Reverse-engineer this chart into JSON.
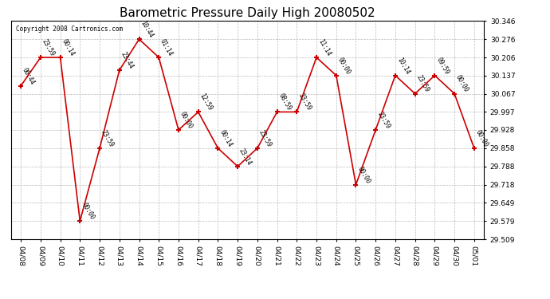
{
  "title": "Barometric Pressure Daily High 20080502",
  "copyright": "Copyright 2008 Cartronics.com",
  "x_labels": [
    "04/08",
    "04/09",
    "04/10",
    "04/11",
    "04/12",
    "04/13",
    "04/14",
    "04/15",
    "04/16",
    "04/17",
    "04/18",
    "04/19",
    "04/20",
    "04/21",
    "04/22",
    "04/23",
    "04/24",
    "04/25",
    "04/26",
    "04/27",
    "04/28",
    "04/29",
    "04/30",
    "05/01"
  ],
  "y_values": [
    30.097,
    30.206,
    30.206,
    29.579,
    29.858,
    30.157,
    30.276,
    30.206,
    29.928,
    29.997,
    29.858,
    29.788,
    29.858,
    29.997,
    29.997,
    30.206,
    30.137,
    29.718,
    29.928,
    30.137,
    30.067,
    30.137,
    30.067,
    29.858
  ],
  "point_labels": [
    "06:44",
    "23:59",
    "00:14",
    "00:00",
    "23:59",
    "23:44",
    "10:44",
    "01:14",
    "00:00",
    "12:59",
    "00:14",
    "23:14",
    "23:59",
    "08:59",
    "23:59",
    "11:14",
    "00:00",
    "00:00",
    "23:59",
    "10:14",
    "23:59",
    "09:59",
    "00:00",
    "00:00"
  ],
  "ylim_min": 29.509,
  "ylim_max": 30.346,
  "yticks": [
    29.509,
    29.579,
    29.649,
    29.718,
    29.788,
    29.858,
    29.928,
    29.997,
    30.067,
    30.137,
    30.206,
    30.276,
    30.346
  ],
  "line_color": "#cc0000",
  "marker_color": "#cc0000",
  "bg_color": "#ffffff",
  "plot_bg_color": "#ffffff",
  "grid_color": "#bbbbbb",
  "title_fontsize": 11,
  "label_fontsize": 6.5,
  "annotation_fontsize": 5.5
}
